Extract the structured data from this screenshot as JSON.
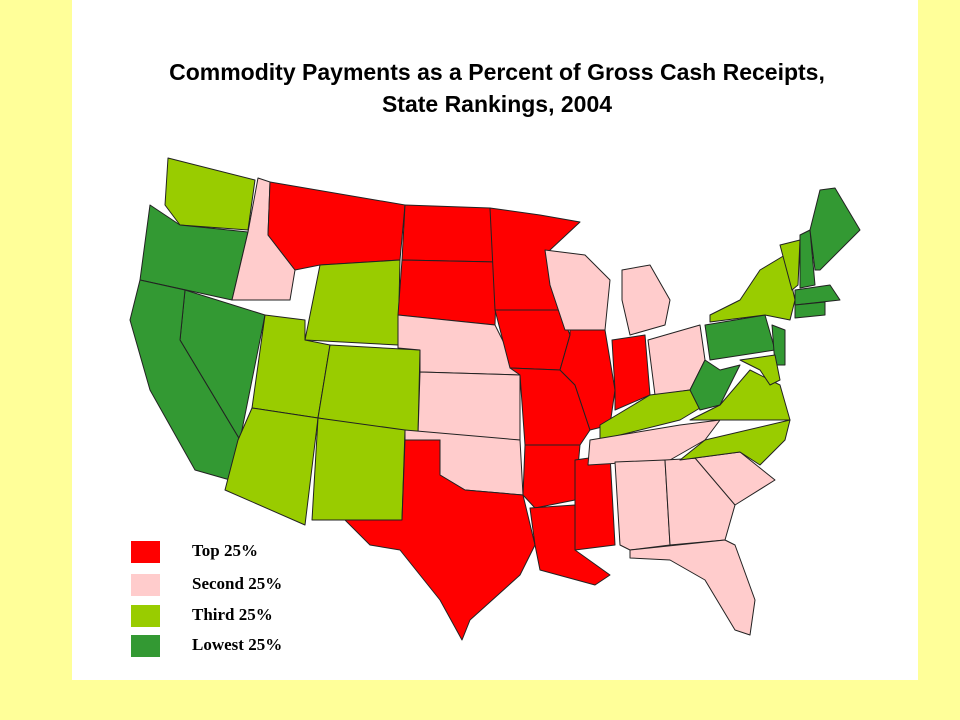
{
  "title": {
    "line1": "Commodity Payments as a Percent of Gross Cash Receipts,",
    "line2": "State Rankings, 2004"
  },
  "legend": [
    {
      "label": "Top 25%",
      "color": "#ff0000"
    },
    {
      "label": "Second 25%",
      "color": "#ffcccc"
    },
    {
      "label": "Third 25%",
      "color": "#99cc00"
    },
    {
      "label": "Lowest 25%",
      "color": "#339933"
    }
  ]
}
